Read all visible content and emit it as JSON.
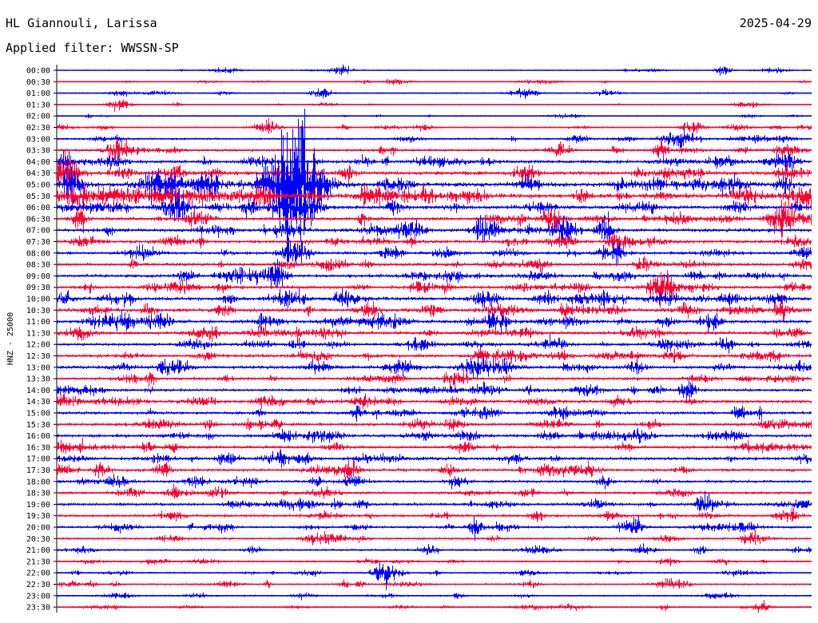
{
  "header": {
    "station": "HL Giannouli, Larissa",
    "date": "2025-04-29",
    "filter": "Applied filter: WWSSN-SP"
  },
  "colors": {
    "trace_a": "#0000ff",
    "trace_b": "#ff0033",
    "axis": "#000000"
  },
  "chart_data": {
    "type": "line",
    "subtype": "helicorder",
    "title": "HL Giannouli, Larissa",
    "ylabel": "HNZ - 25000",
    "row_interval_minutes": 30,
    "row_labels": [
      "00:00",
      "00:30",
      "01:00",
      "01:30",
      "02:00",
      "02:30",
      "03:00",
      "03:30",
      "04:00",
      "04:30",
      "05:00",
      "05:30",
      "06:00",
      "06:30",
      "07:00",
      "07:30",
      "08:00",
      "08:30",
      "09:00",
      "09:30",
      "10:00",
      "10:30",
      "11:00",
      "11:30",
      "12:00",
      "12:30",
      "13:00",
      "13:30",
      "14:00",
      "14:30",
      "15:00",
      "15:30",
      "16:00",
      "16:30",
      "17:00",
      "17:30",
      "18:00",
      "18:30",
      "19:00",
      "19:30",
      "20:00",
      "20:30",
      "21:00",
      "21:30",
      "22:00",
      "22:30",
      "23:00",
      "23:30"
    ],
    "row_colors": [
      "blue",
      "red"
    ],
    "background_noise_level": [
      0.5,
      0.4,
      0.6,
      0.4,
      0.5,
      0.7,
      0.9,
      1.2,
      1.5,
      1.8,
      2.2,
      2.0,
      1.8,
      1.6,
      1.7,
      1.5,
      1.4,
      1.5,
      1.6,
      1.5,
      1.7,
      1.8,
      1.6,
      1.5,
      1.4,
      1.5,
      1.6,
      1.4,
      1.3,
      1.5,
      1.4,
      1.4,
      1.5,
      1.4,
      1.6,
      1.4,
      1.3,
      1.2,
      1.3,
      1.2,
      1.1,
      1.0,
      1.0,
      0.8,
      0.8,
      0.8,
      0.7,
      0.7
    ],
    "events": [
      {
        "row": 0,
        "minute": 11.3,
        "amplitude": 6,
        "duration_min": 0.8
      },
      {
        "row": 0,
        "minute": 26.5,
        "amplitude": 5,
        "duration_min": 0.6
      },
      {
        "row": 1,
        "minute": 13.5,
        "amplitude": 3,
        "duration_min": 1.0
      },
      {
        "row": 2,
        "minute": 10.5,
        "amplitude": 6,
        "duration_min": 0.8
      },
      {
        "row": 3,
        "minute": 2.5,
        "amplitude": 5,
        "duration_min": 1.0
      },
      {
        "row": 3,
        "minute": 27.5,
        "amplitude": 4,
        "duration_min": 1.0
      },
      {
        "row": 5,
        "minute": 8.3,
        "amplitude": 7,
        "duration_min": 1.0
      },
      {
        "row": 5,
        "minute": 25.3,
        "amplitude": 8,
        "duration_min": 0.8
      },
      {
        "row": 6,
        "minute": 24.7,
        "amplitude": 10,
        "duration_min": 1.2
      },
      {
        "row": 7,
        "minute": 2.3,
        "amplitude": 8,
        "duration_min": 0.6
      },
      {
        "row": 7,
        "minute": 20.0,
        "amplitude": 7,
        "duration_min": 0.8
      },
      {
        "row": 7,
        "minute": 24.0,
        "amplitude": 14,
        "duration_min": 0.5
      },
      {
        "row": 8,
        "minute": 0.3,
        "amplitude": 10,
        "duration_min": 0.6
      },
      {
        "row": 9,
        "minute": 0.2,
        "amplitude": 14,
        "duration_min": 0.8
      },
      {
        "row": 10,
        "minute": 9.5,
        "amplitude": 78,
        "duration_min": 2.0
      },
      {
        "row": 10,
        "minute": 28.9,
        "amplitude": 14,
        "duration_min": 0.6
      },
      {
        "row": 11,
        "minute": 3.5,
        "amplitude": 9,
        "duration_min": 9.0
      },
      {
        "row": 11,
        "minute": 8.2,
        "amplitude": 12,
        "duration_min": 0.6
      },
      {
        "row": 12,
        "minute": 4.8,
        "amplitude": 16,
        "duration_min": 0.6
      },
      {
        "row": 12,
        "minute": 9.7,
        "amplitude": 14,
        "duration_min": 1.5
      },
      {
        "row": 13,
        "minute": 0.9,
        "amplitude": 14,
        "duration_min": 0.5
      },
      {
        "row": 13,
        "minute": 28.9,
        "amplitude": 16,
        "duration_min": 1.0
      },
      {
        "row": 14,
        "minute": 21.8,
        "amplitude": 18,
        "duration_min": 0.6
      },
      {
        "row": 16,
        "minute": 9.5,
        "amplitude": 18,
        "duration_min": 1.0
      },
      {
        "row": 19,
        "minute": 24.0,
        "amplitude": 18,
        "duration_min": 1.0
      },
      {
        "row": 20,
        "minute": 8.9,
        "amplitude": 9,
        "duration_min": 1.0
      },
      {
        "row": 20,
        "minute": 17.0,
        "amplitude": 10,
        "duration_min": 1.0
      },
      {
        "row": 22,
        "minute": 17.5,
        "amplitude": 12,
        "duration_min": 1.0
      },
      {
        "row": 22,
        "minute": 26.0,
        "amplitude": 12,
        "duration_min": 0.8
      },
      {
        "row": 24,
        "minute": 26.6,
        "amplitude": 10,
        "duration_min": 0.6
      },
      {
        "row": 26,
        "minute": 23.0,
        "amplitude": 9,
        "duration_min": 0.6
      },
      {
        "row": 35,
        "minute": 4.2,
        "amplitude": 9,
        "duration_min": 0.6
      },
      {
        "row": 38,
        "minute": 25.7,
        "amplitude": 13,
        "duration_min": 0.6
      },
      {
        "row": 40,
        "minute": 16.6,
        "amplitude": 13,
        "duration_min": 0.5
      },
      {
        "row": 40,
        "minute": 23.0,
        "amplitude": 10,
        "duration_min": 0.6
      },
      {
        "row": 44,
        "minute": 13.0,
        "amplitude": 16,
        "duration_min": 0.8
      },
      {
        "row": 47,
        "minute": 28.0,
        "amplitude": 8,
        "duration_min": 0.6
      }
    ]
  }
}
